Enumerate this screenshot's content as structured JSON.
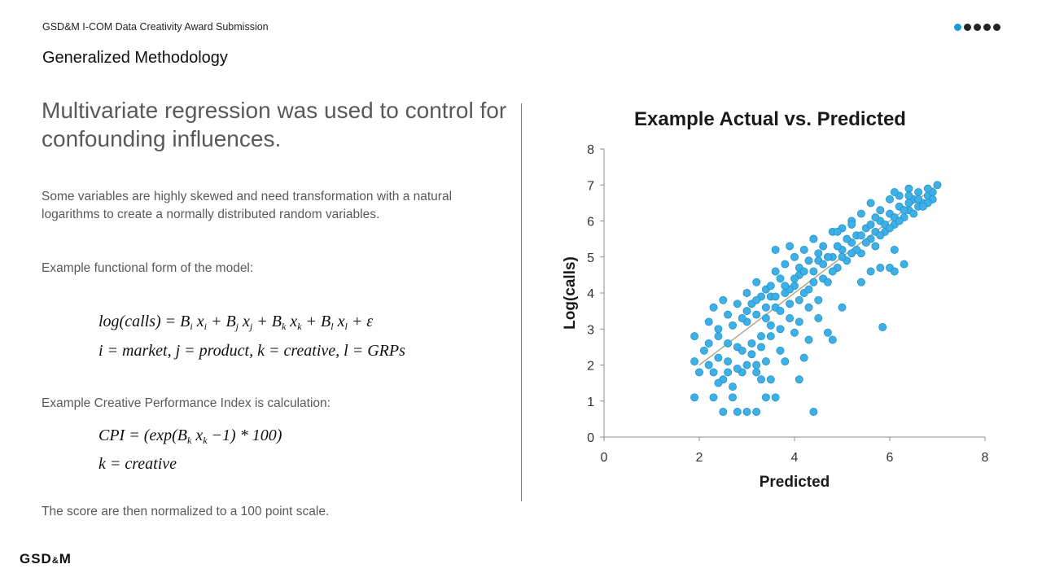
{
  "header": {
    "small": "GSD&M I-COM Data Creativity Award Submission",
    "title": "Generalized Methodology"
  },
  "left": {
    "headline": "Multivariate regression was used to control for confounding influences.",
    "para1": "Some variables are highly skewed and need transformation with a natural logarithms to create a normally distributed random variables.",
    "para2": "Example functional form of the model:",
    "eq1": {
      "lhs": "log(calls) = ",
      "t1": "B",
      "t1s": "i",
      "t1x": " x",
      "t1xs": "i",
      "t2": " + B",
      "t2s": "j",
      "t2x": " x",
      "t2xs": "j",
      "t3": " + B",
      "t3s": "k",
      "t3x": " x",
      "t3xs": "k",
      "t4": " + B",
      "t4s": "l",
      "t4x": " x",
      "t4xs": "l",
      "tail": " + ε"
    },
    "eq2": "i = market, j = product, k = creative, l = GRPs",
    "para3": "Example Creative Performance Index is calculation:",
    "eq3": {
      "a": "CPI = (exp(B",
      "as": "k",
      "b": " x",
      "bs": "k",
      "c": " −1) * 100)"
    },
    "eq4": "k = creative",
    "para4": "The score are then normalized to a 100 point scale."
  },
  "logo": {
    "main": "GSD",
    "amp": "&",
    "end": "M"
  },
  "nav": {
    "current": 1,
    "total": 5
  },
  "chart_data": {
    "type": "scatter",
    "title": "Example Actual vs. Predicted",
    "xlabel": "Predicted",
    "ylabel": "Log(calls)",
    "xlim": [
      0,
      8
    ],
    "ylim": [
      0,
      8
    ],
    "xticks": [
      "0",
      "2",
      "4",
      "6",
      "8"
    ],
    "yticks": [
      "0",
      "1",
      "2",
      "3",
      "4",
      "5",
      "6",
      "7",
      "8"
    ],
    "grid": false,
    "point_color": "#3eb0e6",
    "point_edge": "#1a8fc8",
    "trendline": {
      "from": [
        2.0,
        2.0
      ],
      "to": [
        7.0,
        7.0
      ],
      "color": "#b5a68a"
    },
    "series": [
      {
        "points": [
          [
            2.3,
            1.8
          ],
          [
            2.4,
            2.2
          ],
          [
            2.6,
            2.6
          ],
          [
            2.8,
            2.5
          ],
          [
            3.0,
            3.2
          ],
          [
            3.2,
            3.4
          ],
          [
            3.4,
            3.3
          ],
          [
            3.5,
            3.9
          ],
          [
            3.6,
            3.6
          ],
          [
            3.8,
            4.0
          ],
          [
            4.0,
            4.2
          ],
          [
            4.1,
            4.5
          ],
          [
            4.2,
            4.0
          ],
          [
            4.4,
            4.6
          ],
          [
            4.5,
            4.9
          ],
          [
            4.6,
            4.4
          ],
          [
            4.8,
            5.0
          ],
          [
            5.0,
            5.2
          ],
          [
            5.2,
            5.4
          ],
          [
            5.3,
            5.6
          ],
          [
            5.5,
            5.8
          ],
          [
            5.6,
            5.5
          ],
          [
            5.8,
            6.0
          ],
          [
            6.0,
            6.2
          ],
          [
            6.2,
            6.4
          ],
          [
            6.3,
            6.1
          ],
          [
            6.5,
            6.6
          ],
          [
            6.6,
            6.8
          ],
          [
            6.8,
            6.7
          ],
          [
            7.0,
            7.0
          ],
          [
            2.5,
            1.6
          ],
          [
            2.7,
            1.4
          ],
          [
            2.9,
            1.8
          ],
          [
            3.1,
            2.3
          ],
          [
            3.3,
            2.8
          ],
          [
            3.5,
            3.1
          ],
          [
            3.7,
            3.5
          ],
          [
            3.9,
            3.7
          ],
          [
            4.1,
            3.8
          ],
          [
            4.3,
            4.1
          ],
          [
            4.7,
            4.3
          ],
          [
            4.9,
            4.7
          ],
          [
            5.1,
            4.9
          ],
          [
            5.4,
            5.1
          ],
          [
            5.7,
            5.3
          ],
          [
            5.9,
            5.7
          ],
          [
            6.1,
            5.9
          ],
          [
            6.4,
            6.3
          ],
          [
            6.7,
            6.5
          ],
          [
            6.9,
            6.6
          ],
          [
            2.2,
            2.6
          ],
          [
            2.4,
            3.0
          ],
          [
            2.6,
            3.4
          ],
          [
            2.8,
            3.7
          ],
          [
            3.0,
            4.0
          ],
          [
            3.2,
            4.3
          ],
          [
            3.4,
            4.1
          ],
          [
            3.6,
            4.6
          ],
          [
            3.8,
            4.8
          ],
          [
            4.0,
            5.0
          ],
          [
            4.2,
            5.2
          ],
          [
            4.4,
            5.5
          ],
          [
            4.6,
            5.3
          ],
          [
            4.8,
            5.7
          ],
          [
            5.0,
            5.8
          ],
          [
            5.2,
            6.0
          ],
          [
            5.4,
            6.2
          ],
          [
            5.6,
            6.5
          ],
          [
            5.8,
            6.3
          ],
          [
            6.0,
            6.6
          ],
          [
            6.2,
            6.7
          ],
          [
            6.4,
            6.9
          ],
          [
            6.6,
            6.4
          ],
          [
            6.8,
            6.5
          ],
          [
            2.3,
            1.1
          ],
          [
            2.5,
            0.7
          ],
          [
            2.7,
            1.1
          ],
          [
            2.8,
            0.7
          ],
          [
            3.0,
            0.7
          ],
          [
            3.2,
            0.7
          ],
          [
            3.4,
            1.1
          ],
          [
            3.6,
            1.1
          ],
          [
            1.9,
            1.1
          ],
          [
            1.9,
            2.1
          ],
          [
            1.9,
            2.8
          ],
          [
            2.0,
            1.8
          ],
          [
            2.1,
            2.4
          ],
          [
            2.2,
            3.2
          ],
          [
            2.3,
            3.6
          ],
          [
            2.5,
            3.8
          ],
          [
            3.3,
            1.6
          ],
          [
            3.5,
            1.6
          ],
          [
            3.2,
            2.0
          ],
          [
            3.7,
            2.4
          ],
          [
            3.8,
            2.1
          ],
          [
            4.0,
            2.9
          ],
          [
            4.1,
            1.6
          ],
          [
            4.2,
            2.2
          ],
          [
            4.3,
            2.7
          ],
          [
            4.4,
            0.7
          ],
          [
            4.5,
            3.3
          ],
          [
            4.7,
            2.9
          ],
          [
            4.8,
            2.7
          ],
          [
            5.0,
            3.6
          ],
          [
            5.4,
            4.3
          ],
          [
            5.6,
            4.6
          ],
          [
            5.8,
            4.7
          ],
          [
            5.85,
            3.05
          ],
          [
            6.0,
            4.7
          ],
          [
            6.1,
            5.2
          ],
          [
            6.1,
            4.6
          ],
          [
            6.3,
            4.8
          ],
          [
            3.6,
            5.2
          ],
          [
            3.9,
            5.3
          ],
          [
            4.4,
            5.5
          ],
          [
            4.9,
            5.7
          ],
          [
            5.2,
            5.9
          ],
          [
            5.7,
            6.1
          ],
          [
            6.1,
            6.8
          ],
          [
            6.4,
            6.7
          ],
          [
            2.6,
            2.1
          ],
          [
            2.9,
            2.4
          ],
          [
            3.1,
            2.6
          ],
          [
            3.3,
            2.5
          ],
          [
            3.5,
            2.8
          ],
          [
            3.7,
            3.0
          ],
          [
            3.9,
            3.3
          ],
          [
            4.1,
            3.2
          ],
          [
            4.3,
            3.6
          ],
          [
            4.5,
            3.8
          ],
          [
            2.4,
            2.8
          ],
          [
            2.7,
            3.1
          ],
          [
            2.9,
            3.3
          ],
          [
            3.1,
            3.7
          ],
          [
            3.3,
            3.9
          ],
          [
            3.5,
            4.2
          ],
          [
            3.7,
            4.4
          ],
          [
            3.9,
            4.1
          ],
          [
            4.1,
            4.7
          ],
          [
            4.3,
            4.9
          ],
          [
            4.5,
            5.1
          ],
          [
            4.7,
            5.0
          ],
          [
            4.9,
            5.3
          ],
          [
            5.1,
            5.5
          ],
          [
            5.3,
            5.2
          ],
          [
            5.5,
            5.4
          ],
          [
            5.7,
            5.7
          ],
          [
            5.9,
            5.9
          ],
          [
            6.1,
            6.1
          ],
          [
            6.3,
            6.3
          ],
          [
            6.5,
            6.2
          ],
          [
            6.7,
            6.4
          ],
          [
            6.9,
            6.8
          ],
          [
            2.8,
            1.9
          ],
          [
            3.0,
            2.0
          ],
          [
            3.2,
            1.8
          ],
          [
            3.4,
            2.1
          ],
          [
            2.6,
            1.8
          ],
          [
            2.4,
            1.5
          ],
          [
            2.2,
            2.0
          ],
          [
            3.0,
            3.5
          ],
          [
            3.2,
            3.8
          ],
          [
            3.4,
            3.6
          ],
          [
            3.6,
            3.9
          ],
          [
            3.8,
            4.2
          ],
          [
            4.0,
            4.4
          ],
          [
            4.2,
            4.6
          ],
          [
            4.4,
            4.3
          ],
          [
            4.6,
            4.8
          ],
          [
            4.8,
            4.6
          ],
          [
            5.0,
            5.0
          ],
          [
            5.2,
            5.1
          ],
          [
            5.4,
            5.6
          ],
          [
            5.6,
            5.9
          ],
          [
            5.8,
            5.6
          ],
          [
            6.0,
            5.8
          ],
          [
            6.2,
            6.0
          ],
          [
            6.4,
            6.5
          ],
          [
            6.6,
            6.6
          ],
          [
            6.8,
            6.9
          ]
        ]
      }
    ]
  }
}
